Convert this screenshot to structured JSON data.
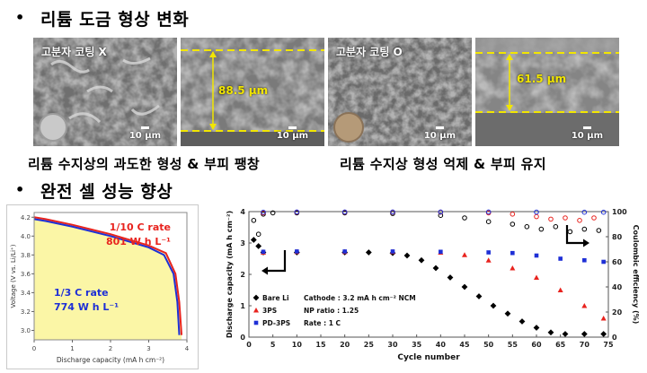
{
  "section1": {
    "bullet": "•",
    "title": "리튬 도금 형상 변화"
  },
  "section2": {
    "bullet": "•",
    "title": "완전 셀 성능 향상"
  },
  "sem": {
    "label_no_coating": "고분자 코팅 X",
    "label_coating": "고분자 코팅 O",
    "scale_label": "10 μm",
    "thickness_no_coating": "88.5 μm",
    "thickness_coating": "61.5 μm"
  },
  "captions": {
    "left": "리튬 수지상의 과도한 형성 & 부피 팽창",
    "right": "리튬 수지상 형성 억제 & 부피 유지"
  },
  "colors": {
    "measure": "#f2e600",
    "bare": "#000000",
    "3ps": "#e8231e",
    "pd3ps": "#1e2fd6",
    "fill": "#fbf6a6"
  },
  "chart_data": [
    {
      "type": "line",
      "xlabel": "Discharge capacity (mA h cm⁻²)",
      "ylabel": "Voltage (V vs. Li/Li⁺)",
      "xlim": [
        0,
        4
      ],
      "ylim": [
        2.9,
        4.25
      ],
      "xticks": [
        "0",
        "1",
        "2",
        "3",
        "4"
      ],
      "yticks": [
        "3.0",
        "3.2",
        "3.4",
        "3.6",
        "3.8",
        "4.0",
        "4.2"
      ],
      "annotations": {
        "rate_fast": "1/10 C rate",
        "energy_fast": "801 W h L⁻¹",
        "rate_slow": "1/3 C rate",
        "energy_slow": "774 W h L⁻¹"
      },
      "series": [
        {
          "points": [
            [
              0,
              4.2
            ],
            [
              0.3,
              4.18
            ],
            [
              1,
              4.12
            ],
            [
              2,
              4.02
            ],
            [
              3,
              3.9
            ],
            [
              3.45,
              3.82
            ],
            [
              3.7,
              3.6
            ],
            [
              3.8,
              3.3
            ],
            [
              3.86,
              2.95
            ]
          ]
        },
        {
          "points": [
            [
              0,
              4.18
            ],
            [
              0.3,
              4.16
            ],
            [
              1,
              4.1
            ],
            [
              2,
              4.0
            ],
            [
              3,
              3.88
            ],
            [
              3.4,
              3.8
            ],
            [
              3.65,
              3.6
            ],
            [
              3.75,
              3.3
            ],
            [
              3.8,
              2.95
            ]
          ]
        }
      ]
    },
    {
      "type": "scatter",
      "xlabel": "Cycle number",
      "ylabel": "Discharge capacity (mA h cm⁻²)",
      "y2label": "Coulombic efficiency (%)",
      "xlim": [
        0,
        75
      ],
      "ylim": [
        0,
        4
      ],
      "y2lim": [
        0,
        100
      ],
      "xticks": [
        "0",
        "5",
        "10",
        "15",
        "20",
        "25",
        "30",
        "35",
        "40",
        "45",
        "50",
        "55",
        "60",
        "65",
        "70",
        "75"
      ],
      "yticks": [
        "0",
        "1",
        "2",
        "3",
        "4"
      ],
      "y2ticks": [
        "0",
        "20",
        "40",
        "60",
        "80",
        "100"
      ],
      "legend": {
        "bare": "Bare Li",
        "ps3": "3PS",
        "pd3ps": "PD-3PS",
        "cathode": "Cathode : 3.2 mA h cm⁻² NCM",
        "np": "NP ratio : 1.25",
        "rate": "Rate : 1 C"
      },
      "series": [
        {
          "name": "Bare Li",
          "axis": "left",
          "points": [
            [
              1,
              3.1
            ],
            [
              2,
              2.9
            ],
            [
              3,
              2.7
            ],
            [
              10,
              2.7
            ],
            [
              20,
              2.7
            ],
            [
              25,
              2.7
            ],
            [
              30,
              2.68
            ],
            [
              33,
              2.6
            ],
            [
              36,
              2.45
            ],
            [
              39,
              2.2
            ],
            [
              42,
              1.9
            ],
            [
              45,
              1.6
            ],
            [
              48,
              1.3
            ],
            [
              51,
              1.0
            ],
            [
              54,
              0.75
            ],
            [
              57,
              0.5
            ],
            [
              60,
              0.3
            ],
            [
              63,
              0.15
            ],
            [
              66,
              0.1
            ],
            [
              70,
              0.1
            ],
            [
              74,
              0.1
            ]
          ]
        },
        {
          "name": "3PS",
          "axis": "left",
          "points": [
            [
              3,
              2.7
            ],
            [
              10,
              2.72
            ],
            [
              20,
              2.72
            ],
            [
              30,
              2.72
            ],
            [
              40,
              2.7
            ],
            [
              45,
              2.62
            ],
            [
              50,
              2.45
            ],
            [
              55,
              2.2
            ],
            [
              60,
              1.9
            ],
            [
              65,
              1.5
            ],
            [
              70,
              1.0
            ],
            [
              74,
              0.6
            ]
          ]
        },
        {
          "name": "PD-3PS",
          "axis": "left",
          "points": [
            [
              3,
              2.72
            ],
            [
              10,
              2.73
            ],
            [
              20,
              2.73
            ],
            [
              30,
              2.73
            ],
            [
              40,
              2.72
            ],
            [
              50,
              2.7
            ],
            [
              55,
              2.68
            ],
            [
              60,
              2.6
            ],
            [
              65,
              2.5
            ],
            [
              70,
              2.45
            ],
            [
              74,
              2.4
            ]
          ]
        },
        {
          "name": "Bare Li CE",
          "axis": "right",
          "points": [
            [
              1,
              93
            ],
            [
              2,
              82
            ],
            [
              3,
              98
            ],
            [
              5,
              99
            ],
            [
              10,
              99
            ],
            [
              20,
              99
            ],
            [
              30,
              98.5
            ],
            [
              40,
              97
            ],
            [
              45,
              95
            ],
            [
              50,
              92
            ],
            [
              55,
              90
            ],
            [
              58,
              88
            ],
            [
              61,
              86
            ],
            [
              64,
              88
            ],
            [
              67,
              84
            ],
            [
              70,
              86
            ],
            [
              73,
              85
            ]
          ]
        },
        {
          "name": "3PS CE",
          "axis": "right",
          "points": [
            [
              3,
              99
            ],
            [
              10,
              99.5
            ],
            [
              20,
              99.5
            ],
            [
              30,
              99.5
            ],
            [
              40,
              99.5
            ],
            [
              50,
              99
            ],
            [
              55,
              98
            ],
            [
              60,
              96
            ],
            [
              63,
              94
            ],
            [
              66,
              95
            ],
            [
              69,
              93
            ],
            [
              72,
              95
            ]
          ]
        },
        {
          "name": "PD-3PS CE",
          "axis": "right",
          "points": [
            [
              3,
              99.5
            ],
            [
              10,
              99.7
            ],
            [
              20,
              99.7
            ],
            [
              30,
              99.7
            ],
            [
              40,
              99.7
            ],
            [
              50,
              99.7
            ],
            [
              60,
              99.6
            ],
            [
              70,
              99.5
            ],
            [
              74,
              99.5
            ]
          ]
        }
      ]
    }
  ]
}
